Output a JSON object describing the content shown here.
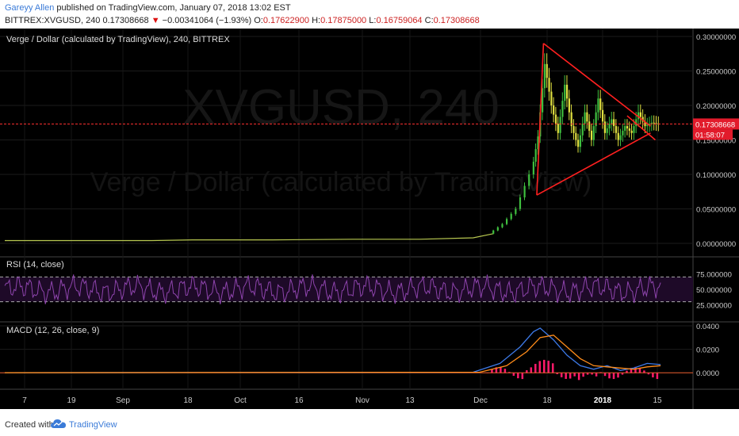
{
  "header": {
    "author": "Gareyy Allen",
    "published": " published on TradingView.com, January 07, 2018 13:02 EST",
    "symbol": "BITTREX:XVGUSD, 240",
    "last": "0.17308668",
    "change_arrow": "▼",
    "change": "−0.00341064 (−1.93%)",
    "o_label": "O:",
    "o": "0.17622900",
    "h_label": "H:",
    "h": "0.17875000",
    "l_label": "L:",
    "l": "0.16759064",
    "c_label": "C:",
    "c": "0.17308668"
  },
  "chart_data": [
    {
      "type": "line",
      "title": "Verge / Dollar (calculated by TradingView), 240, BITTREX",
      "watermark_symbol": "XVGUSD, 240",
      "watermark_name": "Verge / Dollar (calculated by TradingView)",
      "x_ticks": [
        "7",
        "19",
        "Sep",
        "18",
        "Oct",
        "16",
        "Nov",
        "13",
        "Dec",
        "18",
        "2018",
        "15"
      ],
      "y_ticks": [
        "0.30000000",
        "0.25000000",
        "0.20000000",
        "0.15000000",
        "0.10000000",
        "0.05000000",
        "0.00000000"
      ],
      "ylim": [
        0,
        0.3
      ],
      "last_price_label": "0.17308668",
      "countdown_label": "01:58:07",
      "price_points": [
        [
          0,
          0.004
        ],
        [
          22,
          0.004
        ],
        [
          28,
          0.005
        ],
        [
          40,
          0.005
        ],
        [
          52,
          0.006
        ],
        [
          62,
          0.006
        ],
        [
          70,
          0.008
        ],
        [
          73,
          0.014
        ],
        [
          75,
          0.028
        ],
        [
          77,
          0.05
        ],
        [
          79,
          0.1
        ],
        [
          80,
          0.155
        ],
        [
          81,
          0.26
        ],
        [
          82,
          0.2
        ],
        [
          83,
          0.16
        ],
        [
          84,
          0.23
        ],
        [
          85,
          0.17
        ],
        [
          86,
          0.14
        ],
        [
          87,
          0.19
        ],
        [
          88,
          0.15
        ],
        [
          89,
          0.21
        ],
        [
          90,
          0.16
        ],
        [
          91,
          0.18
        ],
        [
          92,
          0.15
        ],
        [
          93,
          0.17
        ],
        [
          94,
          0.16
        ],
        [
          95,
          0.19
        ],
        [
          96,
          0.17
        ],
        [
          97,
          0.175
        ],
        [
          98,
          0.173
        ]
      ],
      "colors": {
        "up": "#3fbf3f",
        "down": "#e0e040",
        "triangle": "#ff2020",
        "price_line": "#ff3030"
      }
    },
    {
      "type": "line",
      "title": "RSI (14, close)",
      "y_ticks": [
        "75.000000",
        "50.000000",
        "25.000000"
      ],
      "ylim": [
        0,
        100
      ],
      "bands": [
        30,
        70
      ],
      "colors": {
        "line": "#8e44ad",
        "band_fill": "#1e0a28"
      }
    },
    {
      "type": "line",
      "title": "MACD (12, 26, close, 9)",
      "y_ticks": [
        "0.0400",
        "0.0200",
        "0.0000"
      ],
      "ylim": [
        -0.012,
        0.042
      ],
      "series": [
        {
          "values": [
            [
              0,
              0
            ],
            [
              70,
              0.0005
            ],
            [
              74,
              0.008
            ],
            [
              77,
              0.022
            ],
            [
              79,
              0.035
            ],
            [
              80,
              0.038
            ],
            [
              82,
              0.028
            ],
            [
              84,
              0.015
            ],
            [
              86,
              0.006
            ],
            [
              88,
              0.003
            ],
            [
              90,
              0.006
            ],
            [
              92,
              0.002
            ],
            [
              94,
              0.004
            ],
            [
              96,
              0.008
            ],
            [
              98,
              0.007
            ]
          ]
        },
        {
          "values": [
            [
              0,
              0
            ],
            [
              71,
              0.0005
            ],
            [
              75,
              0.006
            ],
            [
              78,
              0.018
            ],
            [
              80,
              0.03
            ],
            [
              82,
              0.032
            ],
            [
              84,
              0.022
            ],
            [
              86,
              0.012
            ],
            [
              88,
              0.006
            ],
            [
              90,
              0.005
            ],
            [
              92,
              0.004
            ],
            [
              94,
              0.003
            ],
            [
              96,
              0.005
            ],
            [
              98,
              0.006
            ]
          ]
        }
      ],
      "colors": {
        "macd": "#3d7ae8",
        "signal": "#ff8c1a",
        "hist": "#ff1a6a"
      }
    }
  ],
  "footer": {
    "created": "Created with",
    "brand": "TradingView"
  }
}
